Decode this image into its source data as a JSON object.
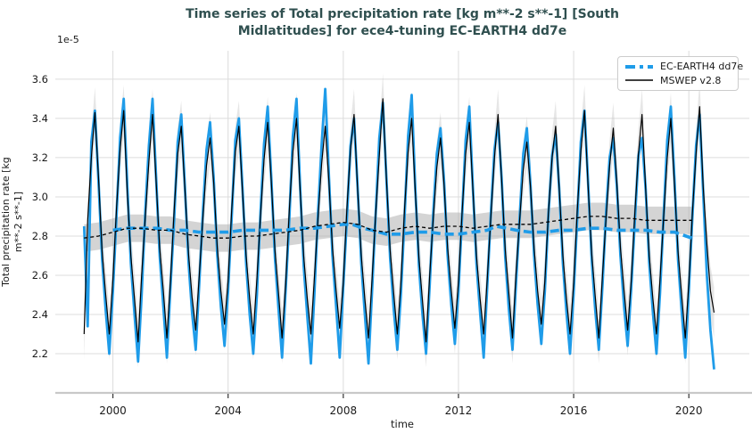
{
  "chart_data": {
    "type": "line",
    "title": "Time series of Total precipitation rate [kg m**-2 s**-1] [South\nMidlatitudes] for ece4-tuning EC-EARTH4 dd7e",
    "title_color": "#2f4f4f",
    "xlabel": "time",
    "ylabel": "Total precipitation rate [kg\nm**-2 s**-1]",
    "offset_text": "1e-5",
    "units_scale": "1e-5",
    "grid": true,
    "grid_color": "#dcdcdc",
    "spine_color": "#c8c8c8",
    "tick_color": "#333333",
    "tick_label_color": "#1a1a1a",
    "legend_position": "upper right",
    "xlim": [
      1998.0,
      2022.1
    ],
    "ylim": [
      2.0,
      3.745
    ],
    "x_ticks": [
      2000,
      2004,
      2008,
      2012,
      2016,
      2020
    ],
    "y_ticks": [
      2.2,
      2.4,
      2.6,
      2.8,
      3.0,
      3.2,
      3.4,
      3.6
    ],
    "series": [
      {
        "name": "EC-EARTH4 dd7e",
        "color": "#1f9ce9",
        "style": "solid",
        "line_width": 2.8,
        "x_start": 1999.0,
        "x_step": 0.125,
        "values": [
          2.85,
          2.34,
          3.28,
          3.44,
          3.08,
          2.68,
          2.42,
          2.2,
          2.52,
          2.9,
          3.3,
          3.5,
          3.06,
          2.66,
          2.4,
          2.16,
          2.5,
          2.93,
          3.26,
          3.5,
          3.1,
          2.7,
          2.44,
          2.18,
          2.54,
          2.88,
          3.28,
          3.42,
          3.05,
          2.67,
          2.41,
          2.22,
          2.56,
          2.92,
          3.24,
          3.38,
          3.09,
          2.7,
          2.44,
          2.24,
          2.52,
          2.89,
          3.29,
          3.4,
          3.05,
          2.66,
          2.4,
          2.2,
          2.5,
          2.92,
          3.27,
          3.46,
          3.1,
          2.69,
          2.43,
          2.18,
          2.53,
          2.88,
          3.31,
          3.5,
          3.06,
          2.65,
          2.39,
          2.15,
          2.51,
          2.93,
          3.27,
          3.55,
          3.11,
          2.7,
          2.44,
          2.18,
          2.54,
          2.89,
          3.26,
          3.4,
          3.04,
          2.66,
          2.4,
          2.15,
          2.52,
          2.91,
          3.3,
          3.48,
          3.09,
          2.69,
          2.43,
          2.22,
          2.5,
          2.88,
          3.31,
          3.52,
          3.05,
          2.65,
          2.4,
          2.2,
          2.55,
          2.92,
          3.22,
          3.35,
          3.08,
          2.7,
          2.45,
          2.25,
          2.52,
          2.9,
          3.29,
          3.46,
          3.05,
          2.66,
          2.41,
          2.18,
          2.54,
          2.92,
          3.24,
          3.38,
          3.09,
          2.69,
          2.43,
          2.22,
          2.56,
          2.89,
          3.22,
          3.35,
          3.06,
          2.7,
          2.45,
          2.25,
          2.52,
          2.91,
          3.21,
          3.32,
          3.04,
          2.66,
          2.41,
          2.2,
          2.51,
          2.89,
          3.28,
          3.44,
          3.08,
          2.68,
          2.42,
          2.22,
          2.55,
          2.92,
          3.2,
          3.3,
          3.05,
          2.7,
          2.44,
          2.24,
          2.53,
          2.88,
          3.21,
          3.3,
          3.04,
          2.66,
          2.41,
          2.2,
          2.51,
          2.91,
          3.29,
          3.46,
          3.09,
          2.68,
          2.42,
          2.18,
          2.52,
          2.9,
          3.26,
          3.42,
          3.02,
          2.6,
          2.32,
          2.12
        ]
      },
      {
        "name": "MSWEP v2.8",
        "color": "#000000",
        "style": "solid",
        "line_width": 1.2,
        "x_start": 1999.0,
        "x_step": 0.125,
        "envelope_halfwidth": 0.13,
        "envelope_color": "#c8c8c8",
        "values": [
          2.3,
          2.88,
          3.2,
          3.43,
          3.1,
          2.72,
          2.5,
          2.3,
          2.58,
          2.94,
          3.24,
          3.44,
          3.02,
          2.7,
          2.48,
          2.26,
          2.6,
          2.9,
          3.18,
          3.42,
          3.08,
          2.74,
          2.52,
          2.28,
          2.57,
          2.93,
          3.22,
          3.36,
          3.04,
          2.71,
          2.49,
          2.32,
          2.6,
          2.89,
          3.16,
          3.3,
          3.07,
          2.74,
          2.52,
          2.35,
          2.57,
          2.93,
          3.23,
          3.36,
          3.03,
          2.7,
          2.48,
          2.3,
          2.58,
          2.9,
          3.19,
          3.38,
          3.08,
          2.73,
          2.51,
          2.28,
          2.56,
          2.93,
          3.23,
          3.4,
          3.04,
          2.7,
          2.48,
          2.3,
          2.59,
          2.9,
          3.17,
          3.36,
          3.08,
          2.74,
          2.52,
          2.33,
          2.56,
          2.94,
          3.24,
          3.42,
          3.03,
          2.7,
          2.48,
          2.28,
          2.58,
          2.91,
          3.21,
          3.5,
          3.09,
          2.73,
          2.51,
          2.3,
          2.56,
          2.93,
          3.23,
          3.4,
          3.03,
          2.69,
          2.47,
          2.26,
          2.6,
          2.89,
          3.15,
          3.3,
          3.06,
          2.74,
          2.52,
          2.33,
          2.57,
          2.92,
          3.22,
          3.38,
          3.04,
          2.7,
          2.48,
          2.3,
          2.58,
          2.9,
          3.2,
          3.42,
          3.08,
          2.73,
          2.51,
          2.28,
          2.61,
          2.88,
          3.14,
          3.28,
          3.05,
          2.74,
          2.52,
          2.35,
          2.57,
          2.92,
          3.2,
          3.36,
          3.04,
          2.7,
          2.48,
          2.3,
          2.56,
          2.93,
          3.23,
          3.44,
          3.06,
          2.71,
          2.49,
          2.28,
          2.6,
          2.89,
          3.16,
          3.35,
          3.07,
          2.74,
          2.52,
          2.32,
          2.57,
          2.92,
          3.22,
          3.42,
          3.04,
          2.7,
          2.48,
          2.3,
          2.58,
          2.9,
          3.2,
          3.4,
          3.06,
          2.72,
          2.5,
          2.28,
          2.56,
          2.92,
          3.22,
          3.46,
          3.05,
          2.76,
          2.52,
          2.41
        ]
      }
    ],
    "rolling_means": [
      {
        "series": "MSWEP v2.8",
        "color": "#000000",
        "style": "dashed",
        "line_width": 1.3,
        "dash": "4 3",
        "band_halfwidth": 0.07,
        "band_color": "#aaaaaa",
        "x": [
          1999.0,
          1999.5,
          2000.0,
          2000.5,
          2001.0,
          2001.5,
          2002.0,
          2002.5,
          2003.0,
          2003.5,
          2004.0,
          2004.5,
          2005.0,
          2005.5,
          2006.0,
          2006.5,
          2007.0,
          2007.5,
          2008.0,
          2008.5,
          2009.0,
          2009.5,
          2010.0,
          2010.5,
          2011.0,
          2011.5,
          2012.0,
          2012.5,
          2013.0,
          2013.5,
          2014.0,
          2014.5,
          2015.0,
          2015.5,
          2016.0,
          2016.5,
          2017.0,
          2017.5,
          2018.0,
          2018.5,
          2019.0,
          2019.5,
          2020.1
        ],
        "values": [
          2.79,
          2.8,
          2.82,
          2.84,
          2.84,
          2.83,
          2.83,
          2.81,
          2.8,
          2.79,
          2.79,
          2.8,
          2.8,
          2.81,
          2.82,
          2.83,
          2.85,
          2.86,
          2.87,
          2.86,
          2.83,
          2.82,
          2.84,
          2.85,
          2.84,
          2.85,
          2.85,
          2.84,
          2.85,
          2.86,
          2.86,
          2.86,
          2.87,
          2.88,
          2.89,
          2.9,
          2.9,
          2.89,
          2.89,
          2.88,
          2.88,
          2.88,
          2.88
        ]
      },
      {
        "series": "EC-EARTH4 dd7e",
        "color": "#1f9ce9",
        "style": "dashed",
        "line_width": 3.6,
        "dash": "10 5",
        "x": [
          2000.0,
          2000.5,
          2001.0,
          2001.5,
          2002.0,
          2002.5,
          2003.0,
          2003.5,
          2004.0,
          2004.5,
          2005.0,
          2005.5,
          2006.0,
          2006.5,
          2007.0,
          2007.5,
          2008.0,
          2008.3,
          2008.7,
          2009.0,
          2009.5,
          2010.0,
          2010.5,
          2011.0,
          2011.5,
          2012.0,
          2012.5,
          2013.0,
          2013.3,
          2013.7,
          2014.0,
          2014.5,
          2015.0,
          2015.5,
          2016.0,
          2016.5,
          2017.0,
          2017.5,
          2018.0,
          2018.5,
          2019.0,
          2019.5,
          2020.1
        ],
        "values": [
          2.83,
          2.84,
          2.84,
          2.84,
          2.83,
          2.83,
          2.82,
          2.82,
          2.82,
          2.83,
          2.83,
          2.83,
          2.83,
          2.84,
          2.84,
          2.85,
          2.86,
          2.86,
          2.84,
          2.83,
          2.81,
          2.81,
          2.82,
          2.82,
          2.81,
          2.81,
          2.82,
          2.83,
          2.85,
          2.84,
          2.83,
          2.82,
          2.82,
          2.83,
          2.83,
          2.84,
          2.84,
          2.83,
          2.83,
          2.83,
          2.82,
          2.82,
          2.79
        ]
      }
    ]
  }
}
